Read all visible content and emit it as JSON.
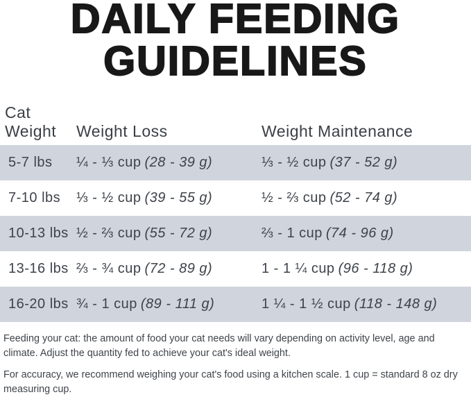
{
  "title": {
    "line1": "DAILY FEEDING",
    "line2": "GUIDELINES"
  },
  "table": {
    "headers": {
      "cat_weight": "Cat Weight",
      "weight_loss": "Weight Loss",
      "weight_maintenance": "Weight Maintenance"
    },
    "rows": [
      {
        "weight": "5-7 lbs",
        "loss": {
          "amount": "¼ - ⅓ cup",
          "grams": "(28 - 39 g)"
        },
        "maintenance": {
          "amount": "⅓ - ½ cup",
          "grams": "(37 - 52 g)"
        }
      },
      {
        "weight": "7-10 lbs",
        "loss": {
          "amount": "⅓ - ½ cup",
          "grams": "(39 - 55 g)"
        },
        "maintenance": {
          "amount": "½ - ⅔ cup",
          "grams": "(52 - 74 g)"
        }
      },
      {
        "weight": "10-13 lbs",
        "loss": {
          "amount": "½ - ⅔ cup",
          "grams": "(55 - 72 g)"
        },
        "maintenance": {
          "amount": "⅔ - 1 cup",
          "grams": "(74 - 96 g)"
        }
      },
      {
        "weight": "13-16 lbs",
        "loss": {
          "amount": "⅔ - ¾ cup",
          "grams": "(72 - 89 g)"
        },
        "maintenance": {
          "amount": "1 - 1 ¼ cup",
          "grams": "(96 - 118 g)"
        }
      },
      {
        "weight": "16-20 lbs",
        "loss": {
          "amount": "¾ - 1 cup",
          "grams": "(89 - 111 g)"
        },
        "maintenance": {
          "amount": "1 ¼ - 1 ½ cup",
          "grams": "(118 - 148 g)"
        }
      }
    ]
  },
  "footnotes": [
    "Feeding your cat: the amount of food your cat needs will vary depending on activity level, age and climate. Adjust the quantity fed to achieve your cat's ideal weight.",
    "For accuracy, we recommend weighing your cat's food using a kitchen scale. 1 cup = standard 8 oz dry measuring cup."
  ],
  "colors": {
    "page_background": "#ffffff",
    "row_alt_background": "#d0d5dd",
    "title_text": "#181818",
    "body_text": "#3e434a"
  }
}
